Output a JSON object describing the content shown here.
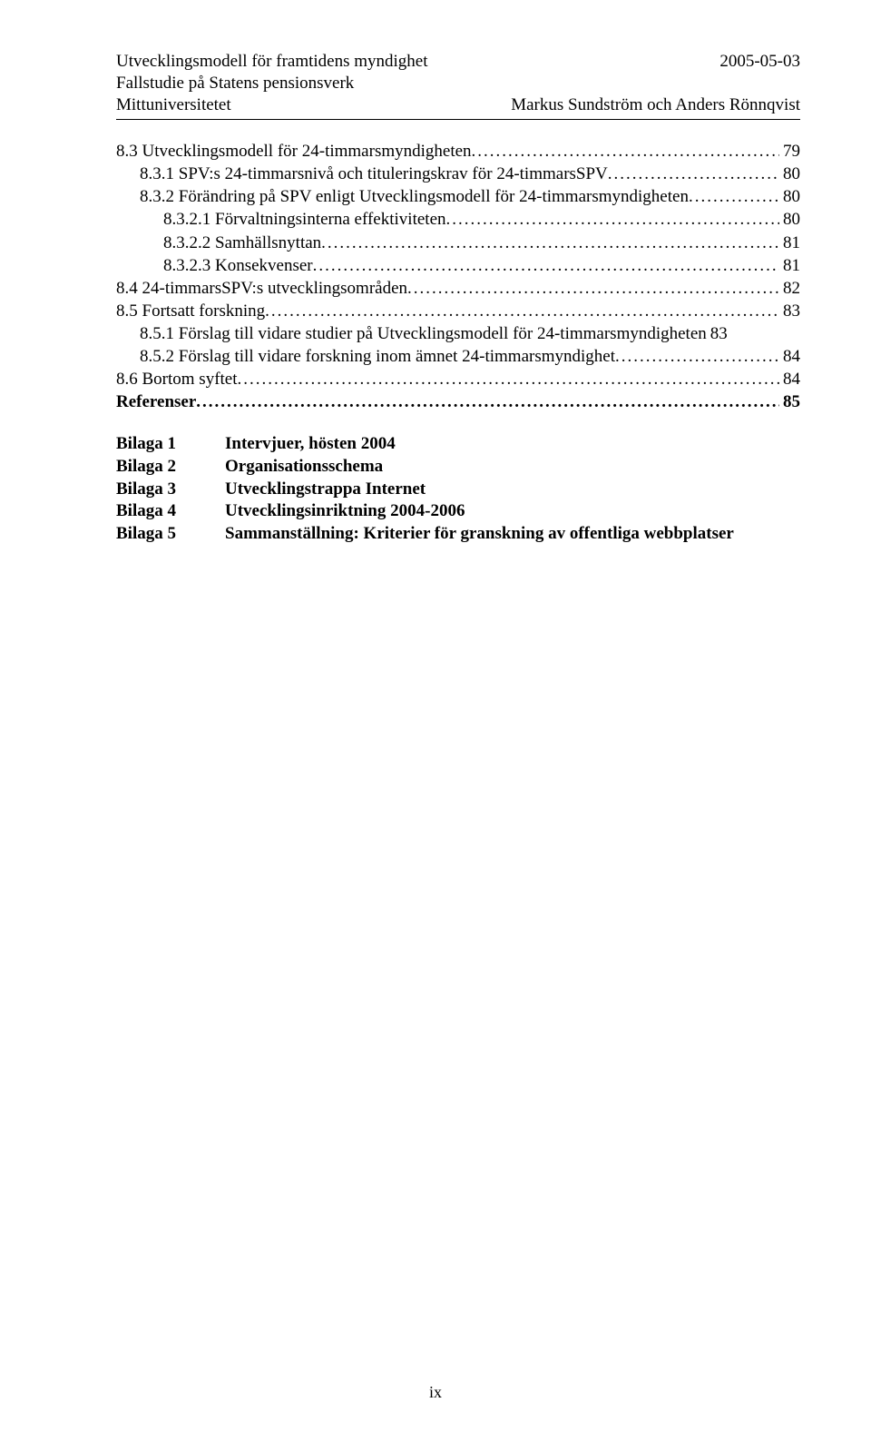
{
  "header": {
    "title_left_1": "Utvecklingsmodell för framtidens myndighet",
    "title_right_1": "2005-05-03",
    "title_left_2": "Fallstudie på Statens pensionsverk",
    "title_left_3": "Mittuniversitetet",
    "title_right_3": "Markus Sundström och Anders Rönnqvist"
  },
  "toc": [
    {
      "indent": 0,
      "label": "8.3 Utvecklingsmodell för 24-timmarsmyndigheten",
      "page": "79",
      "bold": false
    },
    {
      "indent": 1,
      "label": "8.3.1 SPV:s 24-timmarsnivå och tituleringskrav för 24-timmarsSPV",
      "page": "80",
      "bold": false
    },
    {
      "indent": 1,
      "label": "8.3.2 Förändring på SPV enligt Utvecklingsmodell för 24-timmarsmyndigheten",
      "page": "80",
      "bold": false
    },
    {
      "indent": 2,
      "label": "8.3.2.1 Förvaltningsinterna effektiviteten",
      "page": "80",
      "bold": false
    },
    {
      "indent": 2,
      "label": "8.3.2.2 Samhällsnyttan",
      "page": "81",
      "bold": false
    },
    {
      "indent": 2,
      "label": "8.3.2.3 Konsekvenser",
      "page": "81",
      "bold": false
    },
    {
      "indent": 0,
      "label": "8.4 24-timmarsSPV:s utvecklingsområden",
      "page": "82",
      "bold": false
    },
    {
      "indent": 0,
      "label": "8.5 Fortsatt forskning",
      "page": "83",
      "bold": false
    },
    {
      "indent": 1,
      "label": "8.5.1 Förslag till vidare studier på Utvecklingsmodell för 24-timmarsmyndigheten",
      "page": "83",
      "bold": false,
      "nodots": true
    },
    {
      "indent": 1,
      "label": "8.5.2 Förslag till vidare forskning inom ämnet 24-timmarsmyndighet",
      "page": "84",
      "bold": false
    },
    {
      "indent": 0,
      "label": "8.6 Bortom syftet",
      "page": "84",
      "bold": false
    },
    {
      "indent": 0,
      "label": "Referenser",
      "page": "85",
      "bold": true
    }
  ],
  "appendix": [
    {
      "label": "Bilaga 1",
      "text": "Intervjuer, hösten 2004"
    },
    {
      "label": "Bilaga 2",
      "text": "Organisationsschema"
    },
    {
      "label": "Bilaga 3",
      "text": "Utvecklingstrappa Internet"
    },
    {
      "label": "Bilaga 4",
      "text": "Utvecklingsinriktning 2004-2006"
    },
    {
      "label": "Bilaga 5",
      "text": "Sammanställning: Kriterier för granskning av offentliga webbplatser"
    }
  ],
  "footer": {
    "page_number": "ix"
  }
}
